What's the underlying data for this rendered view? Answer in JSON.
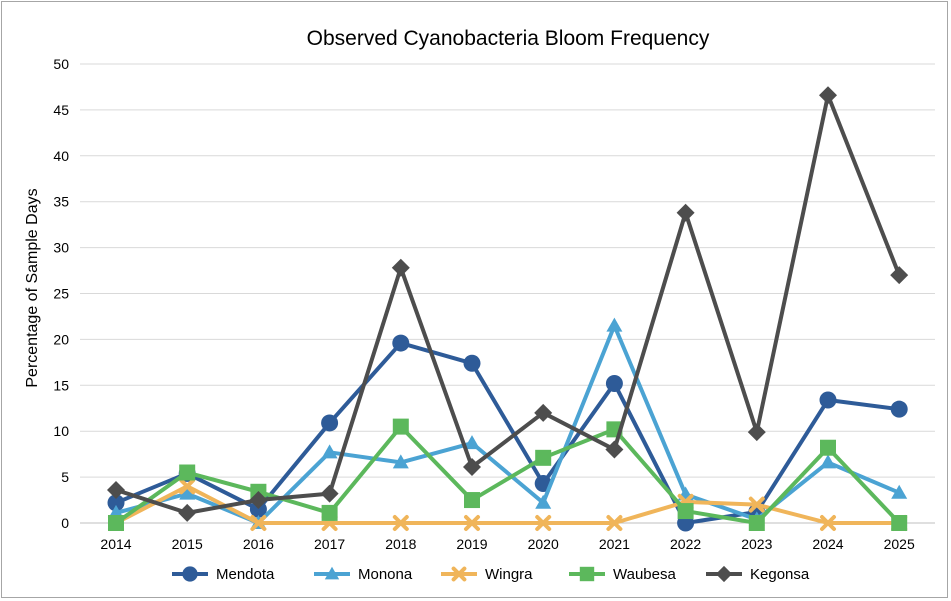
{
  "chart_data": {
    "type": "line",
    "title": "Observed Cyanobacteria Bloom Frequency",
    "xlabel": "",
    "ylabel": "Percentage of Sample Days",
    "ylim": [
      0,
      50
    ],
    "yticks": [
      "0",
      "5",
      "10",
      "15",
      "20",
      "25",
      "30",
      "35",
      "40",
      "45",
      "50"
    ],
    "grid": "horizontal",
    "legend_position": "bottom",
    "categories": [
      "2014",
      "2015",
      "2016",
      "2017",
      "2018",
      "2019",
      "2020",
      "2021",
      "2022",
      "2023",
      "2024",
      "2025"
    ],
    "series": [
      {
        "name": "Mendota",
        "color": "#2e5b98",
        "marker": "circle",
        "values": [
          2.2,
          5.4,
          1.5,
          10.9,
          19.6,
          17.4,
          4.3,
          15.2,
          0.0,
          1.2,
          13.4,
          12.4
        ]
      },
      {
        "name": "Monona",
        "color": "#4ba3d3",
        "marker": "triangle",
        "values": [
          1.1,
          3.2,
          0.0,
          7.7,
          6.6,
          8.7,
          2.2,
          21.5,
          3.1,
          0.4,
          6.6,
          3.3
        ]
      },
      {
        "name": "Wingra",
        "color": "#f0b55a",
        "marker": "x",
        "values": [
          0.0,
          4.0,
          0.0,
          0.0,
          0.0,
          0.0,
          0.0,
          0.0,
          2.3,
          2.0,
          0.0,
          0.0
        ]
      },
      {
        "name": "Waubesa",
        "color": "#5cb85c",
        "marker": "square",
        "values": [
          0.0,
          5.5,
          3.4,
          1.1,
          10.5,
          2.5,
          7.1,
          10.2,
          1.3,
          0.0,
          8.2,
          0.0
        ]
      },
      {
        "name": "Kegonsa",
        "color": "#4d4d4d",
        "marker": "diamond",
        "values": [
          3.6,
          1.1,
          2.5,
          3.2,
          27.8,
          6.1,
          12.0,
          8.0,
          33.8,
          9.9,
          46.6,
          27.0
        ]
      }
    ]
  }
}
